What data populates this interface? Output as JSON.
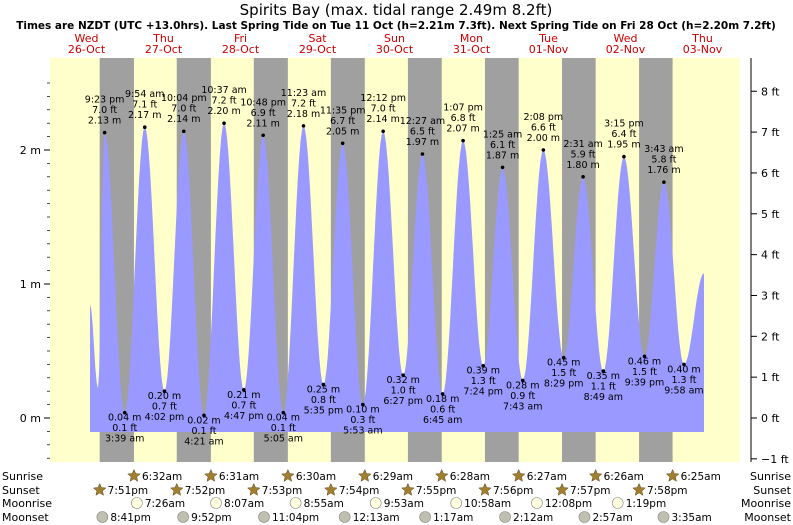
{
  "chart_data": {
    "type": "area",
    "title": "Spirits Bay (max. tidal range 2.49m 8.2ft)",
    "subtitle": "Times are NZDT (UTC +13.0hrs). Last Spring Tide on Tue 11 Oct (h=2.21m 7.3ft). Next Spring Tide on Fri 28 Oct (h=2.20m 7.2ft)",
    "ylabel_left_unit": "m",
    "ylabel_right_unit": "ft",
    "left_ticks": [
      {
        "v": 0,
        "label": "0 m"
      },
      {
        "v": 1,
        "label": "1 m"
      },
      {
        "v": 2,
        "label": "2 m"
      }
    ],
    "right_ticks": [
      {
        "v": -1,
        "label": "−1 ft"
      },
      {
        "v": 0,
        "label": "0 ft"
      },
      {
        "v": 1,
        "label": "1 ft"
      },
      {
        "v": 2,
        "label": "2 ft"
      },
      {
        "v": 3,
        "label": "3 ft"
      },
      {
        "v": 4,
        "label": "4 ft"
      },
      {
        "v": 5,
        "label": "5 ft"
      },
      {
        "v": 6,
        "label": "6 ft"
      },
      {
        "v": 7,
        "label": "7 ft"
      },
      {
        "v": 8,
        "label": "8 ft"
      }
    ],
    "days": [
      {
        "dow": "Wed",
        "date": "26-Oct"
      },
      {
        "dow": "Thu",
        "date": "27-Oct"
      },
      {
        "dow": "Fri",
        "date": "28-Oct"
      },
      {
        "dow": "Sat",
        "date": "29-Oct"
      },
      {
        "dow": "Sun",
        "date": "30-Oct"
      },
      {
        "dow": "Mon",
        "date": "31-Oct"
      },
      {
        "dow": "Tue",
        "date": "01-Nov"
      },
      {
        "dow": "Wed",
        "date": "02-Nov"
      },
      {
        "dow": "Thu",
        "date": "03-Nov"
      }
    ],
    "tides": [
      {
        "day": 0,
        "time": "9:23 pm",
        "m": 2.13,
        "ft": "7.0 ft",
        "mlabel": "2.13 m",
        "type": "high"
      },
      {
        "day": 1,
        "time": "3:39 am",
        "m": 0.04,
        "ft": "0.1 ft",
        "mlabel": "0.04 m",
        "type": "low"
      },
      {
        "day": 1,
        "time": "9:54 am",
        "m": 2.17,
        "ft": "7.1 ft",
        "mlabel": "2.17 m",
        "type": "high"
      },
      {
        "day": 1,
        "time": "4:02 pm",
        "m": 0.2,
        "ft": "0.7 ft",
        "mlabel": "0.20 m",
        "type": "low"
      },
      {
        "day": 1,
        "time": "10:04 pm",
        "m": 2.14,
        "ft": "7.0 ft",
        "mlabel": "2.14 m",
        "type": "high"
      },
      {
        "day": 2,
        "time": "4:21 am",
        "m": 0.02,
        "ft": "0.1 ft",
        "mlabel": "0.02 m",
        "type": "low"
      },
      {
        "day": 2,
        "time": "10:37 am",
        "m": 2.2,
        "ft": "7.2 ft",
        "mlabel": "2.20 m",
        "type": "high"
      },
      {
        "day": 2,
        "time": "4:47 pm",
        "m": 0.21,
        "ft": "0.7 ft",
        "mlabel": "0.21 m",
        "type": "low"
      },
      {
        "day": 2,
        "time": "10:48 pm",
        "m": 2.11,
        "ft": "6.9 ft",
        "mlabel": "2.11 m",
        "type": "high"
      },
      {
        "day": 3,
        "time": "5:05 am",
        "m": 0.04,
        "ft": "0.1 ft",
        "mlabel": "0.04 m",
        "type": "low"
      },
      {
        "day": 3,
        "time": "11:23 am",
        "m": 2.18,
        "ft": "7.2 ft",
        "mlabel": "2.18 m",
        "type": "high"
      },
      {
        "day": 3,
        "time": "5:35 pm",
        "m": 0.25,
        "ft": "0.8 ft",
        "mlabel": "0.25 m",
        "type": "low"
      },
      {
        "day": 3,
        "time": "11:35 pm",
        "m": 2.05,
        "ft": "6.7 ft",
        "mlabel": "2.05 m",
        "type": "high"
      },
      {
        "day": 4,
        "time": "5:53 am",
        "m": 0.1,
        "ft": "0.3 ft",
        "mlabel": "0.10 m",
        "type": "low"
      },
      {
        "day": 4,
        "time": "12:12 pm",
        "m": 2.14,
        "ft": "7.0 ft",
        "mlabel": "2.14 m",
        "type": "high"
      },
      {
        "day": 4,
        "time": "6:27 pm",
        "m": 0.32,
        "ft": "1.0 ft",
        "mlabel": "0.32 m",
        "type": "low"
      },
      {
        "day": 5,
        "time": "12:27 am",
        "m": 1.97,
        "ft": "6.5 ft",
        "mlabel": "1.97 m",
        "type": "high"
      },
      {
        "day": 5,
        "time": "6:45 am",
        "m": 0.18,
        "ft": "0.6 ft",
        "mlabel": "0.18 m",
        "type": "low"
      },
      {
        "day": 5,
        "time": "1:07 pm",
        "m": 2.07,
        "ft": "6.8 ft",
        "mlabel": "2.07 m",
        "type": "high"
      },
      {
        "day": 5,
        "time": "7:24 pm",
        "m": 0.39,
        "ft": "1.3 ft",
        "mlabel": "0.39 m",
        "type": "low"
      },
      {
        "day": 6,
        "time": "1:25 am",
        "m": 1.87,
        "ft": "6.1 ft",
        "mlabel": "1.87 m",
        "type": "high"
      },
      {
        "day": 6,
        "time": "7:43 am",
        "m": 0.28,
        "ft": "0.9 ft",
        "mlabel": "0.28 m",
        "type": "low"
      },
      {
        "day": 6,
        "time": "2:08 pm",
        "m": 2.0,
        "ft": "6.6 ft",
        "mlabel": "2.00 m",
        "type": "high"
      },
      {
        "day": 6,
        "time": "8:29 pm",
        "m": 0.45,
        "ft": "1.5 ft",
        "mlabel": "0.45 m",
        "type": "low"
      },
      {
        "day": 7,
        "time": "2:31 am",
        "m": 1.8,
        "ft": "5.9 ft",
        "mlabel": "1.80 m",
        "type": "high"
      },
      {
        "day": 7,
        "time": "8:49 am",
        "m": 0.35,
        "ft": "1.1 ft",
        "mlabel": "0.35 m",
        "type": "low"
      },
      {
        "day": 7,
        "time": "3:15 pm",
        "m": 1.95,
        "ft": "6.4 ft",
        "mlabel": "1.95 m",
        "type": "high"
      },
      {
        "day": 7,
        "time": "9:39 pm",
        "m": 0.46,
        "ft": "1.5 ft",
        "mlabel": "0.46 m",
        "type": "low"
      },
      {
        "day": 8,
        "time": "3:43 am",
        "m": 1.76,
        "ft": "5.8 ft",
        "mlabel": "1.76 m",
        "type": "high"
      },
      {
        "day": 8,
        "time": "9:58 am",
        "m": 0.4,
        "ft": "1.3 ft",
        "mlabel": "0.40 m",
        "type": "low"
      }
    ],
    "sunrise": [
      {
        "day": 1,
        "time": "6:32am"
      },
      {
        "day": 2,
        "time": "6:31am"
      },
      {
        "day": 3,
        "time": "6:30am"
      },
      {
        "day": 4,
        "time": "6:29am"
      },
      {
        "day": 5,
        "time": "6:28am"
      },
      {
        "day": 6,
        "time": "6:27am"
      },
      {
        "day": 7,
        "time": "6:26am"
      },
      {
        "day": 8,
        "time": "6:25am"
      }
    ],
    "sunset": [
      {
        "day": 0,
        "time": "7:51pm"
      },
      {
        "day": 1,
        "time": "7:52pm"
      },
      {
        "day": 2,
        "time": "7:53pm"
      },
      {
        "day": 3,
        "time": "7:54pm"
      },
      {
        "day": 4,
        "time": "7:55pm"
      },
      {
        "day": 5,
        "time": "7:56pm"
      },
      {
        "day": 6,
        "time": "7:57pm"
      },
      {
        "day": 7,
        "time": "7:58pm"
      }
    ],
    "moonrise": [
      {
        "day": 1,
        "time": "7:26am"
      },
      {
        "day": 2,
        "time": "8:07am"
      },
      {
        "day": 3,
        "time": "8:55am"
      },
      {
        "day": 4,
        "time": "9:53am"
      },
      {
        "day": 5,
        "time": "10:58am"
      },
      {
        "day": 6,
        "time": "12:08pm"
      },
      {
        "day": 7,
        "time": "1:19pm"
      }
    ],
    "moonset": [
      {
        "day": 0,
        "time": "8:41pm"
      },
      {
        "day": 1,
        "time": "9:52pm"
      },
      {
        "day": 2,
        "time": "11:04pm"
      },
      {
        "day": 4,
        "time": "12:13am"
      },
      {
        "day": 5,
        "time": "1:17am"
      },
      {
        "day": 6,
        "time": "2:12am"
      },
      {
        "day": 7,
        "time": "2:57am"
      },
      {
        "day": 8,
        "time": "3:35am"
      }
    ],
    "row_labels": {
      "sunrise": "Sunrise",
      "sunset": "Sunset",
      "moonrise": "Moonrise",
      "moonset": "Moonset"
    },
    "colors": {
      "day_bg": "#ffffcc",
      "night_bg": "#a0a0a0",
      "water": "#9999ff",
      "day_label": "#cc0000",
      "star": "#a08030",
      "moon": "#ffffe0",
      "moon_set": "#c0c0b0"
    }
  }
}
